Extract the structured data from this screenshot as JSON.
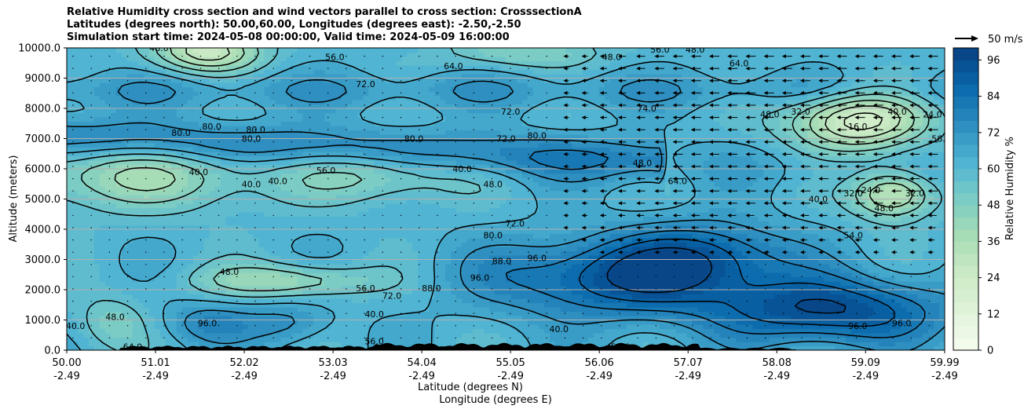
{
  "title_lines": [
    "Relative Humidity cross section and wind vectors parallel to cross section: CrosssectionA",
    "Latitudes (degrees north): 50.00,60.00, Longitudes (degrees east): -2.50,-2.50",
    "Simulation start time: 2024-05-08 00:00:00, Valid time: 2024-05-09 16:00:00"
  ],
  "chart_data": {
    "type": "heatmap",
    "title": "Relative Humidity cross section and wind vectors parallel to cross section: CrosssectionA",
    "ylabel": "Altitude (meters)",
    "xlabel_lat": "Latitude (degrees N)",
    "xlabel_lon": "Longitude (degrees E)",
    "ylim": [
      0,
      10000
    ],
    "xlim": [
      50.0,
      59.99
    ],
    "y_ticks": [
      "0.0",
      "1000.0",
      "2000.0",
      "3000.0",
      "4000.0",
      "5000.0",
      "6000.0",
      "7000.0",
      "8000.0",
      "9000.0",
      "10000.0"
    ],
    "x_ticks_lat": [
      "50.00",
      "51.01",
      "52.02",
      "53.03",
      "54.04",
      "55.05",
      "56.06",
      "57.07",
      "58.08",
      "59.09",
      "59.99"
    ],
    "x_ticks_lon": [
      "-2.49",
      "-2.49",
      "-2.49",
      "-2.49",
      "-2.49",
      "-2.49",
      "-2.49",
      "-2.49",
      "-2.49",
      "-2.49",
      "-2.49"
    ],
    "colorbar": {
      "label": "Relative Humidity %",
      "min": 0,
      "max": 100,
      "step": 4,
      "ticks": [
        "0",
        "12",
        "24",
        "36",
        "48",
        "60",
        "72",
        "84",
        "96"
      ]
    },
    "quiver_key": "50 m/s",
    "contour_labels": [
      {
        "text": "40.0",
        "lat": 50.1,
        "alt": 800
      },
      {
        "text": "48.0",
        "lat": 50.55,
        "alt": 1100
      },
      {
        "text": "64.0",
        "lat": 50.75,
        "alt": 120
      },
      {
        "text": "56.0",
        "lat": 53.5,
        "alt": 300
      },
      {
        "text": "96.0",
        "lat": 51.6,
        "alt": 900
      },
      {
        "text": "48.0",
        "lat": 51.85,
        "alt": 2600
      },
      {
        "text": "56.0",
        "lat": 53.4,
        "alt": 2050
      },
      {
        "text": "72.0",
        "lat": 53.7,
        "alt": 1800
      },
      {
        "text": "88.0",
        "lat": 54.15,
        "alt": 2050
      },
      {
        "text": "96.0",
        "lat": 54.7,
        "alt": 2400
      },
      {
        "text": "96.0",
        "lat": 55.35,
        "alt": 3050
      },
      {
        "text": "88.0",
        "lat": 54.95,
        "alt": 2950
      },
      {
        "text": "80.0",
        "lat": 54.85,
        "alt": 3800
      },
      {
        "text": "72.0",
        "lat": 55.1,
        "alt": 4200
      },
      {
        "text": "48.0",
        "lat": 54.85,
        "alt": 5500
      },
      {
        "text": "40.0",
        "lat": 54.5,
        "alt": 6000
      },
      {
        "text": "56.0",
        "lat": 52.95,
        "alt": 5950
      },
      {
        "text": "40.0",
        "lat": 51.5,
        "alt": 5900
      },
      {
        "text": "40.0",
        "lat": 52.1,
        "alt": 5500
      },
      {
        "text": "40.0",
        "lat": 52.4,
        "alt": 5600
      },
      {
        "text": "80.0",
        "lat": 51.3,
        "alt": 7200
      },
      {
        "text": "80.0",
        "lat": 51.65,
        "alt": 7400
      },
      {
        "text": "80.0",
        "lat": 52.1,
        "alt": 7000
      },
      {
        "text": "80.0",
        "lat": 52.15,
        "alt": 7300
      },
      {
        "text": "80.0",
        "lat": 53.95,
        "alt": 7000
      },
      {
        "text": "72.0",
        "lat": 55.05,
        "alt": 7900
      },
      {
        "text": "72.0",
        "lat": 55.0,
        "alt": 7000
      },
      {
        "text": "80.0",
        "lat": 55.35,
        "alt": 7100
      },
      {
        "text": "72.0",
        "lat": 53.4,
        "alt": 8800
      },
      {
        "text": "56.0",
        "lat": 53.05,
        "alt": 9700
      },
      {
        "text": "48.0",
        "lat": 56.2,
        "alt": 9700
      },
      {
        "text": "56.0",
        "lat": 56.75,
        "alt": 9950
      },
      {
        "text": "48.0",
        "lat": 57.15,
        "alt": 9950
      },
      {
        "text": "48.0",
        "lat": 51.05,
        "alt": 10000
      },
      {
        "text": "64.0",
        "lat": 54.4,
        "alt": 9400
      },
      {
        "text": "74.0",
        "lat": 56.6,
        "alt": 8000
      },
      {
        "text": "48.0",
        "lat": 56.55,
        "alt": 6200
      },
      {
        "text": "64.0",
        "lat": 56.95,
        "alt": 5600
      },
      {
        "text": "48.0",
        "lat": 58.0,
        "alt": 7800
      },
      {
        "text": "32.0",
        "lat": 58.35,
        "alt": 7900
      },
      {
        "text": "16.0",
        "lat": 59.0,
        "alt": 7400
      },
      {
        "text": "40.0",
        "lat": 59.45,
        "alt": 7900
      },
      {
        "text": "24.0",
        "lat": 59.85,
        "alt": 7800
      },
      {
        "text": "40.0",
        "lat": 58.55,
        "alt": 5000
      },
      {
        "text": "32.0",
        "lat": 58.95,
        "alt": 5200
      },
      {
        "text": "24.0",
        "lat": 59.15,
        "alt": 5300
      },
      {
        "text": "48.0",
        "lat": 59.3,
        "alt": 4700
      },
      {
        "text": "32.0",
        "lat": 59.65,
        "alt": 5200
      },
      {
        "text": "54.0",
        "lat": 58.95,
        "alt": 3800
      },
      {
        "text": "64.0",
        "lat": 57.65,
        "alt": 9500
      },
      {
        "text": "56.0",
        "lat": 59.95,
        "alt": 7000
      },
      {
        "text": "96.0",
        "lat": 59.5,
        "alt": 900
      },
      {
        "text": "96.0",
        "lat": 59.0,
        "alt": 800
      },
      {
        "text": "56.0",
        "lat": 56.3,
        "alt": 120
      },
      {
        "text": "40.0",
        "lat": 55.6,
        "alt": 700
      },
      {
        "text": "40.0",
        "lat": 53.5,
        "alt": 1200
      }
    ]
  }
}
